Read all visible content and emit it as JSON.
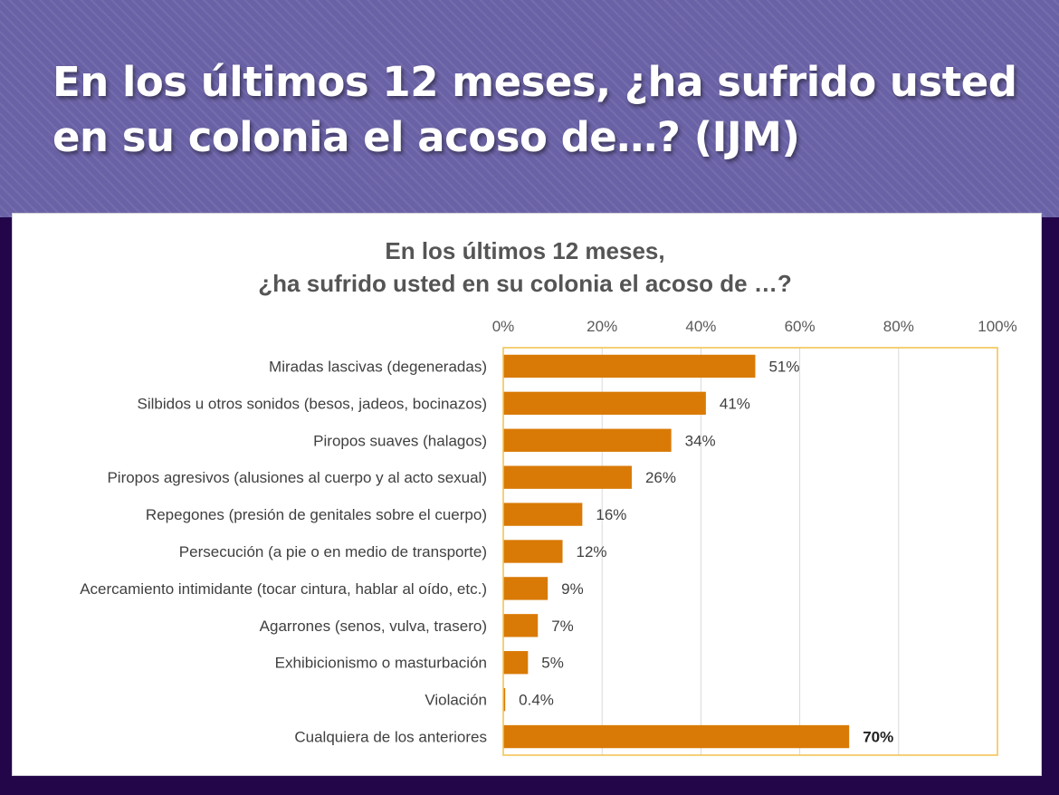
{
  "slide": {
    "title": "En los últimos 12 meses, ¿ha sufrido usted en su colonia el acoso de…? (IJM)"
  },
  "colors": {
    "bar": "#d97a06",
    "plot_border": "#f2c14a",
    "grid": "#d9d9d9"
  },
  "chart_data": {
    "type": "bar",
    "orientation": "horizontal",
    "title_lines": [
      "En los últimos 12 meses,",
      "¿ha sufrido usted en su colonia el acoso de …?"
    ],
    "xlim": [
      0,
      100
    ],
    "x_ticks": [
      "0%",
      "20%",
      "40%",
      "60%",
      "80%",
      "100%"
    ],
    "x_tick_values": [
      0,
      20,
      40,
      60,
      80,
      100
    ],
    "axis_position": "top",
    "grid": true,
    "categories": [
      "Miradas lascivas (degeneradas)",
      "Silbidos u otros sonidos (besos, jadeos, bocinazos)",
      "Piropos suaves (halagos)",
      "Piropos agresivos (alusiones al cuerpo y al acto sexual)",
      "Repegones (presión de genitales sobre el cuerpo)",
      "Persecución (a pie o en medio de transporte)",
      "Acercamiento intimidante (tocar cintura, hablar al oído, etc.)",
      "Agarrones (senos, vulva, trasero)",
      "Exhibicionismo o masturbación",
      "Violación",
      "Cualquiera de los anteriores"
    ],
    "values": [
      51,
      41,
      34,
      26,
      16,
      12,
      9,
      7,
      5,
      0.4,
      70
    ],
    "value_labels": [
      "51%",
      "41%",
      "34%",
      "26%",
      "16%",
      "12%",
      "9%",
      "7%",
      "5%",
      "0.4%",
      "70%"
    ],
    "emphasized_index": 10
  }
}
